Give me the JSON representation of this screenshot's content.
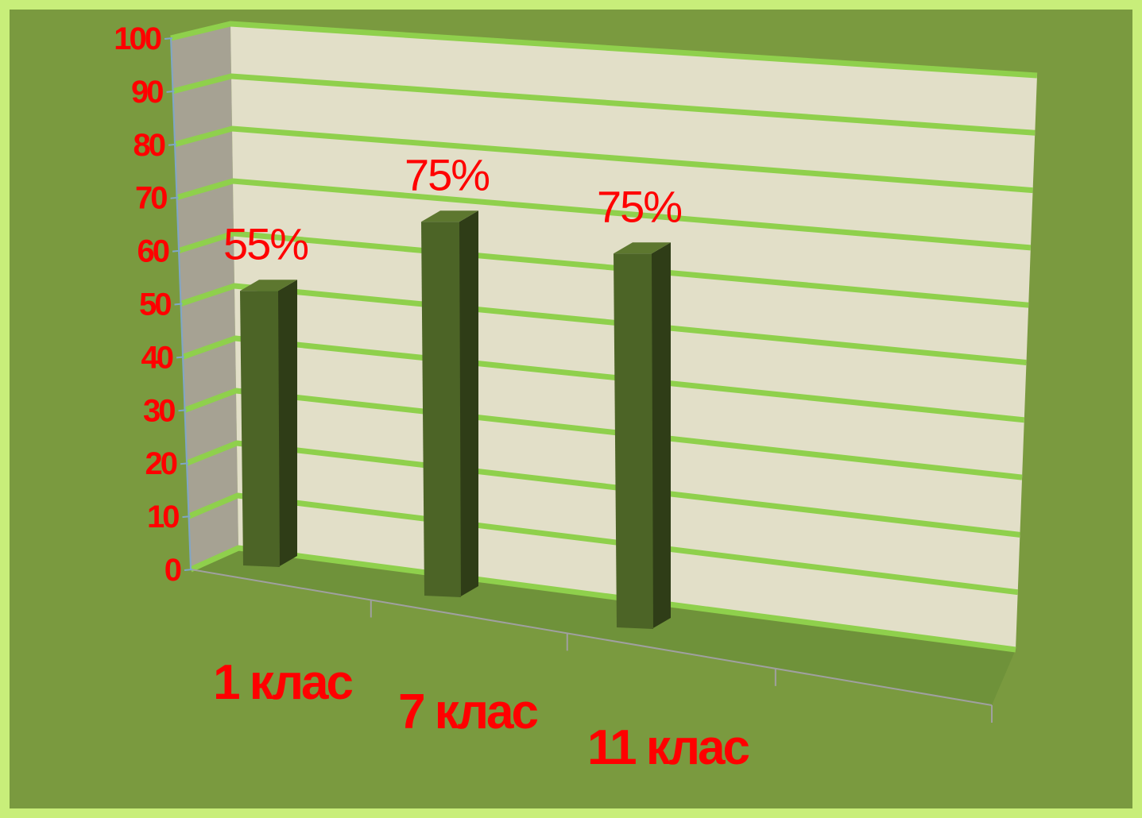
{
  "chart_data": {
    "type": "bar",
    "categories": [
      "1 клас",
      "7 клас",
      "11 клас"
    ],
    "values": [
      55,
      75,
      75
    ],
    "data_labels": [
      "55%",
      "75%",
      "75%"
    ],
    "y_ticks": [
      "0",
      "10",
      "20",
      "30",
      "40",
      "50",
      "60",
      "70",
      "80",
      "90",
      "100"
    ],
    "ylim": [
      0,
      100
    ],
    "grid": true,
    "three_d": true,
    "colors": {
      "frame": "#c8ee7a",
      "background": "#7a9a3f",
      "floor": "#6f923a",
      "back_wall": "#e2dfc8",
      "side_wall": "#a6a293",
      "gridline": "#8fd04c",
      "bar_front": "#4c6426",
      "bar_side": "#2f3d17",
      "bar_top": "#5d772f",
      "text": "#ff0000"
    }
  }
}
